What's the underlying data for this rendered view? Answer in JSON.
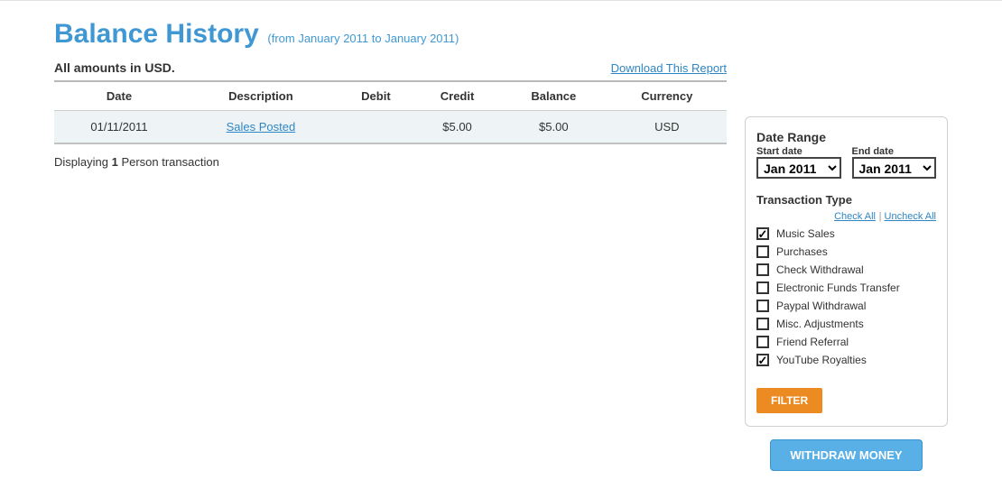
{
  "header": {
    "title": "Balance History",
    "subtitle": "(from January 2011 to January 2011)",
    "amounts_note": "All amounts in USD.",
    "download_link": "Download This Report"
  },
  "table": {
    "columns": [
      "Date",
      "Description",
      "Debit",
      "Credit",
      "Balance",
      "Currency"
    ],
    "rows": [
      {
        "date": "01/11/2011",
        "description": "Sales Posted",
        "debit": "",
        "credit": "$5.00",
        "balance": "$5.00",
        "currency": "USD"
      }
    ]
  },
  "displaying": {
    "prefix": "Displaying ",
    "count": "1",
    "suffix": " Person transaction"
  },
  "sidebar": {
    "date_range_title": "Date Range",
    "start_label": "Start date",
    "end_label": "End date",
    "start_value": "Jan 2011",
    "end_value": "Jan 2011",
    "transaction_type_title": "Transaction Type",
    "check_all": "Check All",
    "uncheck_all": "Uncheck All",
    "types": [
      {
        "label": "Music Sales",
        "checked": true
      },
      {
        "label": "Purchases",
        "checked": false
      },
      {
        "label": "Check Withdrawal",
        "checked": false
      },
      {
        "label": "Electronic Funds Transfer",
        "checked": false
      },
      {
        "label": "Paypal Withdrawal",
        "checked": false
      },
      {
        "label": "Misc. Adjustments",
        "checked": false
      },
      {
        "label": "Friend Referral",
        "checked": false
      },
      {
        "label": "YouTube Royalties",
        "checked": true
      }
    ],
    "filter_button": "FILTER",
    "withdraw_button": "WITHDRAW MONEY"
  },
  "colors": {
    "accent_blue": "#3f98d4",
    "link_blue": "#2f86c4",
    "orange": "#ec8b22",
    "button_blue": "#59b0e6",
    "row_bg": "#eef4f6",
    "border_gray": "#cfcfcf"
  }
}
